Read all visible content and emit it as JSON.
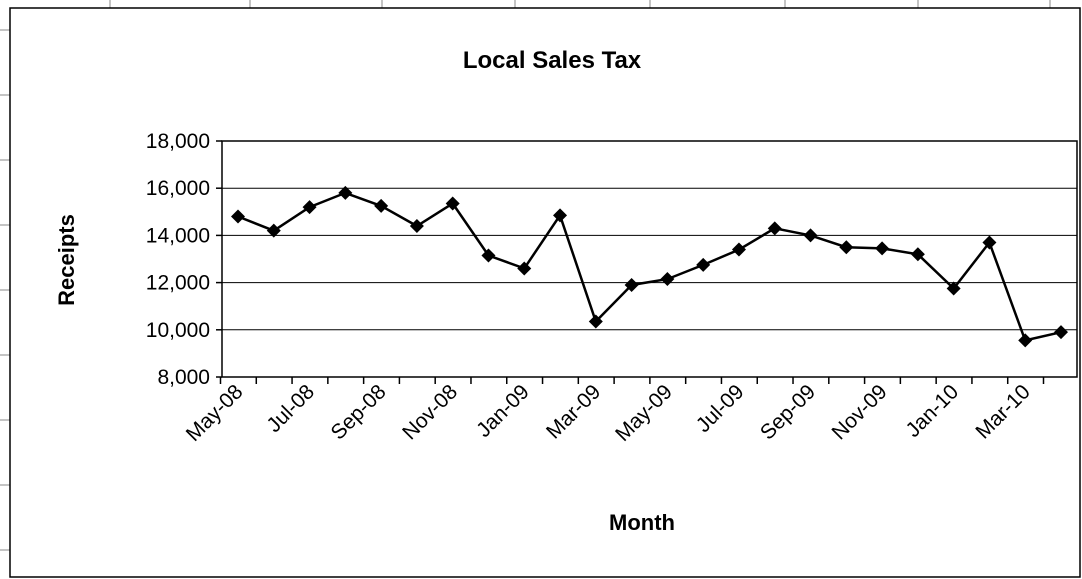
{
  "chart_data": {
    "type": "line",
    "title": "Local Sales Tax",
    "xlabel": "Month",
    "ylabel": "Receipts",
    "ylim": [
      8000,
      18000
    ],
    "y_ticks": [
      "8,000",
      "10,000",
      "12,000",
      "14,000",
      "16,000",
      "18,000"
    ],
    "x_tick_labels": [
      "May-08",
      "Jul-08",
      "Sep-08",
      "Nov-08",
      "Jan-09",
      "Mar-09",
      "May-09",
      "Jul-09",
      "Sep-09",
      "Nov-09",
      "Jan-10",
      "Mar-10"
    ],
    "grid": "horizontal",
    "legend": "none",
    "series": [
      {
        "color": "#000000",
        "marker": "diamond",
        "x": [
          "May-08",
          "Jun-08",
          "Jul-08",
          "Aug-08",
          "Sep-08",
          "Oct-08",
          "Nov-08",
          "Dec-08",
          "Jan-09",
          "Feb-09",
          "Mar-09",
          "Apr-09",
          "May-09",
          "Jun-09",
          "Jul-09",
          "Aug-09",
          "Sep-09",
          "Oct-09",
          "Nov-09",
          "Dec-09",
          "Jan-10",
          "Feb-10",
          "Mar-10",
          "Apr-10"
        ],
        "values": [
          14800,
          14200,
          15200,
          15800,
          15250,
          14400,
          15350,
          13150,
          12600,
          14850,
          10350,
          11900,
          12150,
          12750,
          13400,
          14300,
          14000,
          13500,
          13450,
          13200,
          11750,
          13700,
          9550,
          9900
        ]
      }
    ]
  }
}
